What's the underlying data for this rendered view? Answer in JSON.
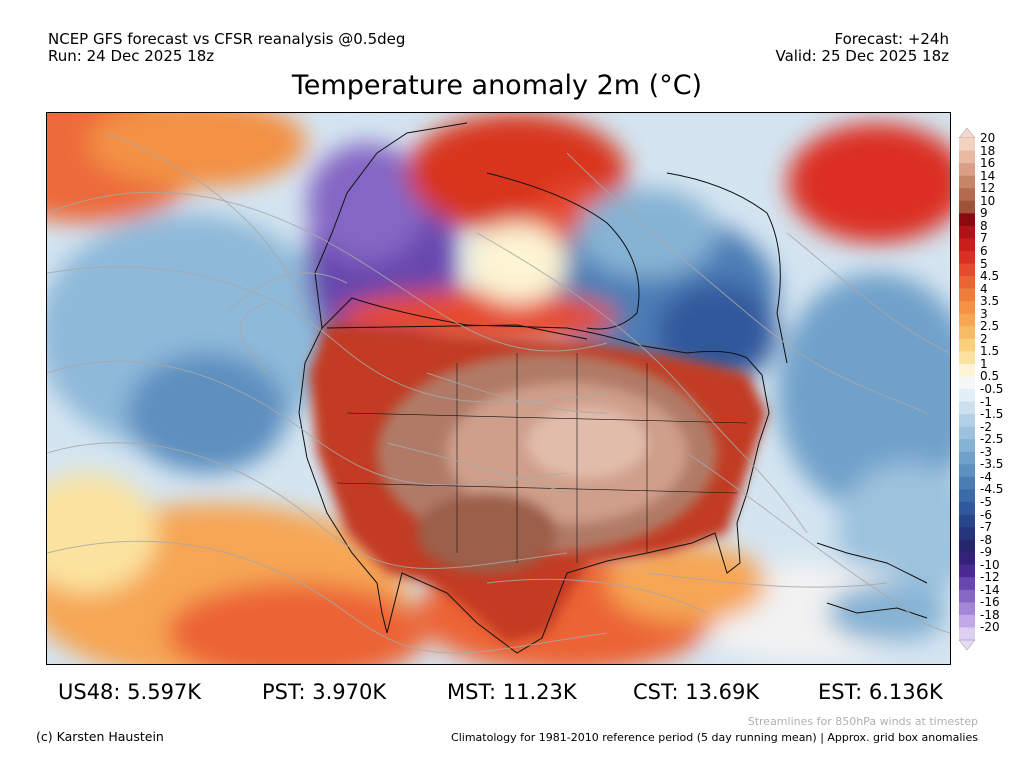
{
  "header": {
    "line1": "NCEP GFS forecast vs CFSR reanalysis @0.5deg",
    "line2": "Run: 24 Dec 2025 18z",
    "forecast": "Forecast: +24h",
    "valid": "Valid: 25 Dec 2025 18z"
  },
  "title": "Temperature anomaly 2m (°C)",
  "colorbar": {
    "labels": [
      "20",
      "18",
      "16",
      "14",
      "12",
      "10",
      "9",
      "8",
      "7",
      "6",
      "5",
      "4.5",
      "4",
      "3.5",
      "3",
      "2.5",
      "2",
      "1.5",
      "1",
      "0.5",
      "-0.5",
      "-1",
      "-1.5",
      "-2",
      "-2.5",
      "-3",
      "-3.5",
      "-4",
      "-4.5",
      "-5",
      "-6",
      "-7",
      "-8",
      "-9",
      "-10",
      "-12",
      "-14",
      "-16",
      "-18",
      "-20"
    ],
    "colors": [
      "#f3d2c1",
      "#e8b9a3",
      "#d99e85",
      "#c88468",
      "#b56a50",
      "#9c533a",
      "#8b0a12",
      "#b1121a",
      "#cb1e1c",
      "#dc2f23",
      "#e64a2d",
      "#ec6436",
      "#f07c3c",
      "#f39145",
      "#f6a654",
      "#f8ba66",
      "#fad07e",
      "#fbe39f",
      "#fdf4d3",
      "#f7f7f7",
      "#e4eef6",
      "#cce0ee",
      "#b3d1e6",
      "#9cc2de",
      "#86b2d4",
      "#71a1ca",
      "#5d8fbf",
      "#4b7db5",
      "#3c6aa9",
      "#31589c",
      "#29468d",
      "#24357d",
      "#26266e",
      "#34217a",
      "#4a2b92",
      "#6746ad",
      "#8466c4",
      "#a386d6",
      "#c2a8e6",
      "#ddd0f2"
    ],
    "arrow_top": "#f6d8c8",
    "arrow_bottom": "#e4dbf6"
  },
  "stats": [
    {
      "label": "US48: 5.597K"
    },
    {
      "label": "PST: 3.970K"
    },
    {
      "label": "MST: 11.23K"
    },
    {
      "label": "CST: 13.69K"
    },
    {
      "label": "EST: 6.136K"
    }
  ],
  "footer": {
    "streamlines_note": "Streamlines for 850hPa winds at timestep",
    "credit": "(c) Karsten Haustein",
    "climatology_note": "Climatology for 1981-2010 reference period (5 day running mean) | Approx. grid box anomalies"
  }
}
